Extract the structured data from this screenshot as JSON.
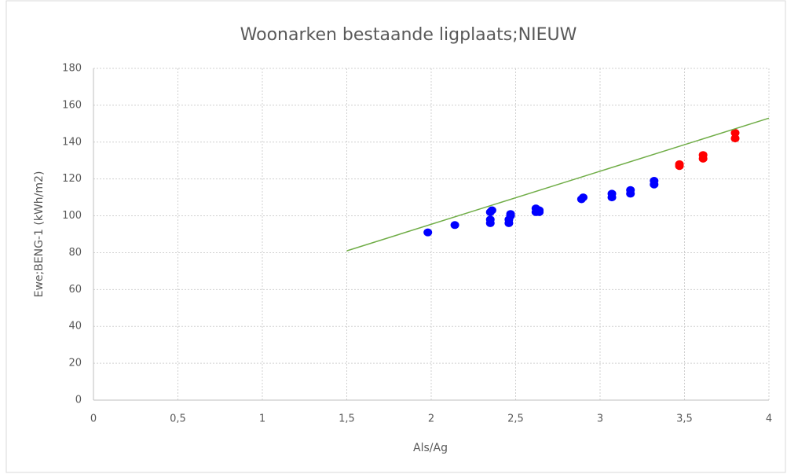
{
  "chart_data": {
    "type": "scatter",
    "title": "Woonarken bestaande ligplaats;NIEUW",
    "x_label": "Als/Ag",
    "y_label": "Ewe;BENG-1  (kWh/m2)",
    "xlim": [
      0,
      4
    ],
    "ylim": [
      0,
      180
    ],
    "xticks": [
      0,
      {
        "value": 0.5,
        "label": "0,5"
      },
      1,
      {
        "value": 1.5,
        "label": "1,5"
      },
      2,
      {
        "value": 2.5,
        "label": "2,5"
      },
      3,
      {
        "value": 3.5,
        "label": "3,5"
      },
      4
    ],
    "yticks": [
      0,
      20,
      40,
      60,
      80,
      100,
      120,
      140,
      160,
      180
    ],
    "grid": true,
    "series": [
      {
        "color": "#0000ff",
        "mode": "markers",
        "x": [
          1.98,
          2.14,
          2.35,
          2.35,
          2.35,
          2.36,
          2.46,
          2.46,
          2.47,
          2.47,
          2.62,
          2.62,
          2.64,
          2.64,
          2.89,
          2.9,
          3.07,
          3.07,
          3.18,
          3.18,
          3.32,
          3.32
        ],
        "values": [
          91,
          95,
          96,
          98,
          102,
          103,
          96,
          98,
          100,
          101,
          102,
          104,
          103,
          102,
          109,
          110,
          110,
          112,
          112,
          114,
          117,
          119
        ]
      },
      {
        "color": "#ff0000",
        "mode": "markers",
        "x": [
          3.47,
          3.47,
          3.61,
          3.61,
          3.8,
          3.8
        ],
        "values": [
          127,
          128,
          131,
          133,
          142,
          145
        ]
      },
      {
        "color": "#70ad47",
        "mode": "line",
        "x": [
          1.5,
          4
        ],
        "values": [
          81,
          153
        ]
      }
    ]
  }
}
